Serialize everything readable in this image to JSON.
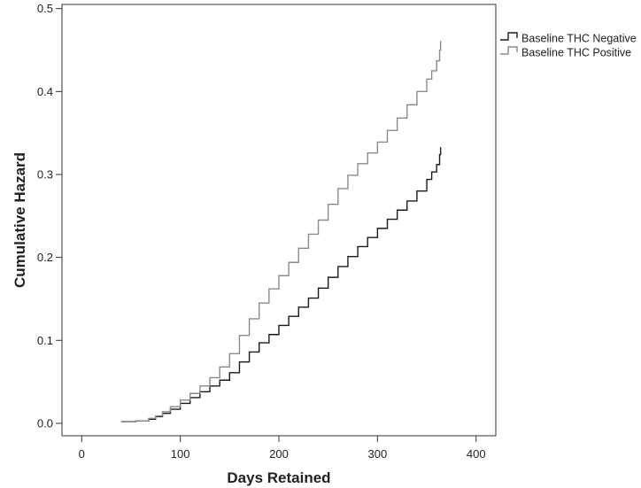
{
  "chart_data": {
    "type": "line",
    "step": true,
    "title": "",
    "xlabel": "Days Retained",
    "ylabel": "Cumulative Hazard",
    "xlim": [
      -20,
      420
    ],
    "ylim": [
      -0.015,
      0.505
    ],
    "xticks": [
      0,
      100,
      200,
      300,
      400
    ],
    "xtick_labels": [
      "0",
      "100",
      "200",
      "300",
      "400"
    ],
    "yticks": [
      0.0,
      0.1,
      0.2,
      0.3,
      0.4,
      0.5
    ],
    "ytick_labels": [
      "0.0",
      "0.1",
      "0.2",
      "0.3",
      "0.4",
      "0.5"
    ],
    "grid": false,
    "legend_position": "outside-top-right",
    "series": [
      {
        "name": "Baseline THC Negative",
        "color": "#1a1a1a",
        "x": [
          40,
          55,
          68,
          75,
          82,
          90,
          100,
          110,
          120,
          130,
          140,
          150,
          160,
          170,
          180,
          190,
          200,
          210,
          220,
          230,
          240,
          250,
          260,
          270,
          280,
          290,
          300,
          310,
          320,
          330,
          340,
          350,
          355,
          360,
          363,
          364
        ],
        "y": [
          0.002,
          0.003,
          0.005,
          0.008,
          0.012,
          0.017,
          0.024,
          0.031,
          0.038,
          0.045,
          0.052,
          0.061,
          0.074,
          0.086,
          0.097,
          0.107,
          0.118,
          0.129,
          0.14,
          0.151,
          0.163,
          0.176,
          0.189,
          0.201,
          0.213,
          0.224,
          0.235,
          0.246,
          0.257,
          0.268,
          0.28,
          0.294,
          0.303,
          0.312,
          0.324,
          0.333
        ]
      },
      {
        "name": "Baseline THC Positive",
        "color": "#8a8a8a",
        "x": [
          40,
          55,
          68,
          75,
          82,
          90,
          100,
          110,
          120,
          130,
          140,
          150,
          160,
          170,
          180,
          190,
          200,
          210,
          220,
          230,
          240,
          250,
          260,
          270,
          280,
          290,
          300,
          310,
          320,
          330,
          340,
          350,
          355,
          360,
          363,
          364
        ],
        "y": [
          0.002,
          0.003,
          0.006,
          0.009,
          0.014,
          0.02,
          0.028,
          0.036,
          0.045,
          0.055,
          0.068,
          0.084,
          0.106,
          0.126,
          0.145,
          0.162,
          0.178,
          0.194,
          0.211,
          0.228,
          0.245,
          0.264,
          0.283,
          0.299,
          0.313,
          0.326,
          0.339,
          0.353,
          0.368,
          0.384,
          0.4,
          0.415,
          0.425,
          0.437,
          0.45,
          0.461
        ]
      }
    ]
  }
}
